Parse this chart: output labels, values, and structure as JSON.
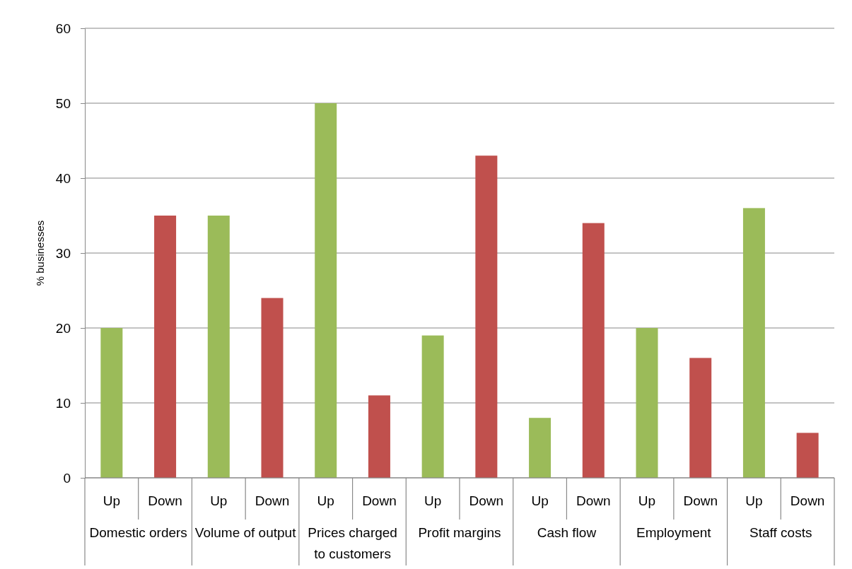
{
  "chart_data": {
    "type": "bar",
    "ylabel": "% businesses",
    "categories": [
      "Domestic orders",
      "Volume of output",
      "Prices charged to customers",
      "Profit margins",
      "Cash flow",
      "Employment",
      "Staff costs"
    ],
    "series": [
      {
        "name": "Up",
        "color": "#9bbb59",
        "values": [
          20,
          35,
          50,
          19,
          8,
          20,
          36
        ]
      },
      {
        "name": "Down",
        "color": "#c0504d",
        "values": [
          35,
          24,
          11,
          43,
          34,
          16,
          6
        ]
      }
    ],
    "ylim": [
      0,
      60
    ],
    "yticks": [
      0,
      10,
      20,
      30,
      40,
      50,
      60
    ],
    "grid": "y"
  }
}
